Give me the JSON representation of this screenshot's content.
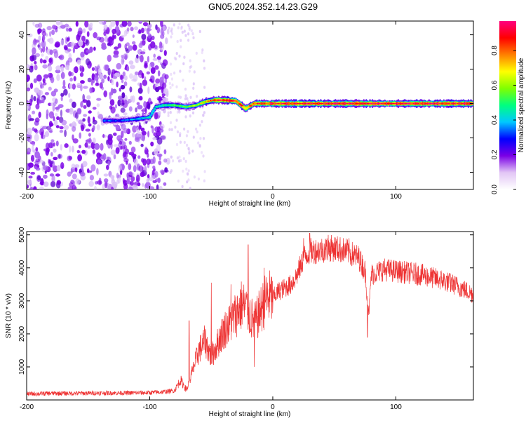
{
  "title": "GN05.2024.352.14.23.G29",
  "chart_data": [
    {
      "type": "heatmap",
      "xlabel": "Height of straight line (km)",
      "ylabel": "Frequency (Hz)",
      "xlim": [
        -200,
        163
      ],
      "ylim": [
        -50,
        48
      ],
      "xticks": [
        "-200",
        "-100",
        "0",
        "100"
      ],
      "yticks": [
        "-40",
        "-20",
        "0",
        "20",
        "40"
      ],
      "colorbar": {
        "label": "Normalized spectral amplitude",
        "range": [
          0,
          0.97
        ],
        "ticks": [
          "0.0",
          "0.2",
          "0.4",
          "0.6",
          "0.8"
        ],
        "colors": [
          "#ffffff",
          "#e2c6f5",
          "#7a00e6",
          "#0000ff",
          "#00c8ff",
          "#00ff80",
          "#80ff00",
          "#ffff00",
          "#ff8000",
          "#ff0000",
          "#ff0080"
        ]
      },
      "noise_region": {
        "x_from": -200,
        "x_to": -85,
        "amplitude": 0.2
      },
      "sparse_region": {
        "x_from": -85,
        "x_to": -55,
        "amplitude": 0.1
      },
      "signal_track": [
        {
          "x": -137,
          "freq": -10,
          "amp": 0.35
        },
        {
          "x": -125,
          "freq": -10,
          "amp": 0.3
        },
        {
          "x": -110,
          "freq": -9,
          "amp": 0.4
        },
        {
          "x": -100,
          "freq": -8,
          "amp": 0.45
        },
        {
          "x": -95,
          "freq": -2,
          "amp": 0.45
        },
        {
          "x": -88,
          "freq": -1,
          "amp": 0.5
        },
        {
          "x": -80,
          "freq": -1,
          "amp": 0.55
        },
        {
          "x": -70,
          "freq": -2,
          "amp": 0.55
        },
        {
          "x": -62,
          "freq": -1,
          "amp": 0.6
        },
        {
          "x": -55,
          "freq": 1,
          "amp": 0.7
        },
        {
          "x": -48,
          "freq": 2,
          "amp": 0.85
        },
        {
          "x": -40,
          "freq": 2,
          "amp": 0.95
        },
        {
          "x": -30,
          "freq": 1.5,
          "amp": 0.95
        },
        {
          "x": -22,
          "freq": -3,
          "amp": 0.8
        },
        {
          "x": -15,
          "freq": 0,
          "amp": 0.85
        },
        {
          "x": 0,
          "freq": 0,
          "amp": 0.95
        },
        {
          "x": 50,
          "freq": 0,
          "amp": 0.95
        },
        {
          "x": 100,
          "freq": 0,
          "amp": 0.95
        },
        {
          "x": 163,
          "freq": 0,
          "amp": 0.95
        }
      ]
    },
    {
      "type": "line",
      "xlabel": "Height of straight line (km)",
      "ylabel": "SNR (10 * v/v)",
      "xlim": [
        -200,
        163
      ],
      "ylim": [
        0,
        5100
      ],
      "xticks": [
        "-200",
        "-100",
        "0",
        "100"
      ],
      "yticks": [
        "1000",
        "2000",
        "3000",
        "4000",
        "5000"
      ],
      "color": "#ee3333",
      "envelope": {
        "x": [
          -200,
          -180,
          -160,
          -140,
          -120,
          -100,
          -90,
          -80,
          -75,
          -70,
          -65,
          -60,
          -55,
          -50,
          -45,
          -40,
          -35,
          -30,
          -25,
          -20,
          -15,
          -10,
          -5,
          0,
          5,
          10,
          15,
          20,
          25,
          30,
          40,
          50,
          60,
          70,
          75,
          78,
          80,
          90,
          100,
          110,
          120,
          130,
          140,
          150,
          163
        ],
        "y": [
          180,
          200,
          200,
          210,
          210,
          220,
          240,
          280,
          600,
          300,
          900,
          1500,
          1800,
          1300,
          1700,
          2100,
          2300,
          2600,
          2900,
          2700,
          2300,
          2700,
          3100,
          3100,
          3300,
          3400,
          3500,
          3800,
          4300,
          4500,
          4550,
          4600,
          4500,
          4300,
          3900,
          2600,
          3800,
          3950,
          3900,
          3850,
          3800,
          3700,
          3600,
          3450,
          3200
        ]
      },
      "spikes": [
        {
          "x": -68,
          "y": 2400
        },
        {
          "x": -50,
          "y": 3550
        },
        {
          "x": -34,
          "y": 3500
        },
        {
          "x": -20,
          "y": 4700
        },
        {
          "x": -15,
          "y": 1000
        },
        {
          "x": -7,
          "y": 4000
        },
        {
          "x": 25,
          "y": 4900
        },
        {
          "x": 30,
          "y": 5050
        },
        {
          "x": 45,
          "y": 5000
        },
        {
          "x": 62,
          "y": 4900
        },
        {
          "x": 77,
          "y": 1900
        }
      ]
    }
  ]
}
